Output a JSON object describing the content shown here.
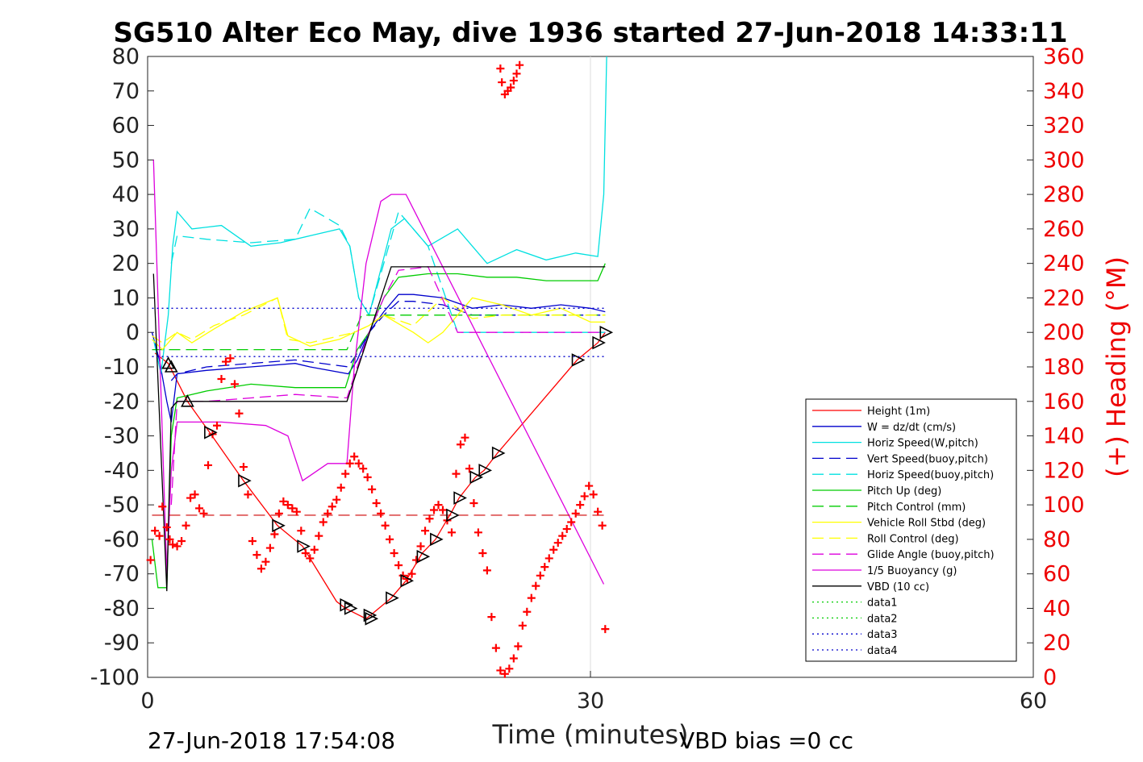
{
  "chart_data": {
    "type": "line",
    "title": "SG510 Alter Eco May, dive 1936 started 27-Jun-2018 14:33:11",
    "xlabel": "Time (minutes)",
    "ylabel_right": "(+) Heading (°M)",
    "xlim": [
      0,
      60
    ],
    "ylim_left": [
      -100,
      80
    ],
    "ylim_right": [
      0,
      360
    ],
    "xticks": [
      "0",
      "30",
      "60"
    ],
    "yticks_left": [
      "80",
      "70",
      "60",
      "50",
      "40",
      "30",
      "20",
      "10",
      "0",
      "-10",
      "-20",
      "-30",
      "-40",
      "-50",
      "-60",
      "-70",
      "-80",
      "-90",
      "-100"
    ],
    "yticks_right": [
      "360",
      "340",
      "320",
      "300",
      "280",
      "260",
      "240",
      "220",
      "200",
      "180",
      "160",
      "140",
      "120",
      "100",
      "80",
      "60",
      "40",
      "20",
      "0"
    ],
    "grid": false,
    "legend_position": "lower-right",
    "footer_left": "27-Jun-2018 17:54:08",
    "footer_right": "VBD bias =0 cc",
    "series": [
      {
        "name": "Height (1m)",
        "color": "#ff0000",
        "style": "solid",
        "x": [
          0.5,
          1.4,
          2.7,
          4.2,
          6.5,
          8.8,
          10.5,
          12.8,
          13.4,
          14.8,
          15.1,
          16.5,
          17.5,
          18.6,
          19.5,
          20.6,
          21.1,
          22.2,
          22.8,
          23.7,
          29.1,
          30.5,
          31.0
        ],
        "y": [
          -6,
          -9,
          -20,
          -29,
          -43,
          -56,
          -62,
          -78,
          -80,
          -83,
          -82,
          -77,
          -72,
          -64,
          -60,
          -52,
          -48,
          -42,
          -40,
          -35,
          -8,
          -3,
          0
        ]
      },
      {
        "name": "W = dz/dt (cm/s)",
        "color": "#0000cc",
        "style": "solid",
        "x": [
          0.3,
          0.8,
          1.3,
          1.6,
          2.0,
          4,
          7,
          10,
          11,
          13.6,
          14.2,
          15,
          16,
          17,
          18,
          20,
          22,
          24,
          26,
          28,
          30,
          31
        ],
        "y": [
          0,
          -8,
          -20,
          -26,
          -12,
          -11,
          -10,
          -9,
          -10,
          -12,
          -8,
          0,
          6,
          11,
          11,
          10,
          7,
          8,
          7,
          8,
          7,
          6
        ]
      },
      {
        "name": "Horiz Speed(W,pitch)",
        "color": "#00e0e0",
        "style": "solid",
        "x": [
          0.4,
          0.9,
          1.4,
          1.7,
          2.0,
          3,
          5,
          7,
          9,
          11,
          13,
          13.7,
          14.3,
          15,
          15.6,
          16.5,
          17.4,
          19,
          21,
          23,
          25,
          27,
          29,
          30.5,
          30.9,
          31.1
        ],
        "y": [
          -2,
          -12,
          5,
          25,
          35,
          30,
          31,
          25,
          26,
          28,
          30,
          25,
          10,
          5,
          15,
          30,
          33,
          25,
          30,
          20,
          24,
          21,
          23,
          22,
          40,
          80
        ]
      },
      {
        "name": "Vert Speed(buoy,pitch)",
        "color": "#0000cc",
        "style": "dashed",
        "x": [
          1.6,
          2,
          4,
          7,
          10,
          13.6,
          14.2,
          15,
          16,
          17,
          18,
          20,
          22,
          24,
          26,
          28,
          30,
          31
        ],
        "y": [
          -14,
          -12,
          -10,
          -9,
          -8,
          -10,
          -6,
          0,
          5,
          9,
          9,
          8,
          5,
          5,
          5,
          5,
          5,
          5
        ]
      },
      {
        "name": "Horiz Speed(buoy,pitch)",
        "color": "#00e0e0",
        "style": "dashed",
        "x": [
          1.6,
          2,
          4,
          7,
          10,
          11,
          13,
          13.7,
          14.3,
          15,
          16,
          17,
          19,
          21,
          23,
          25,
          27,
          29,
          31
        ],
        "y": [
          20,
          28,
          27,
          26,
          27,
          36,
          31,
          25,
          10,
          5,
          20,
          35,
          25,
          0,
          0,
          0,
          0,
          0,
          0
        ]
      },
      {
        "name": "Pitch Up (deg)",
        "color": "#00cc00",
        "style": "solid",
        "x": [
          0.3,
          0.7,
          1.3,
          1.6,
          2,
          4,
          7,
          10,
          13.4,
          14.2,
          15,
          16,
          17,
          19,
          21,
          23,
          25,
          27,
          29,
          30.5,
          31
        ],
        "y": [
          -60,
          -74,
          -74,
          -30,
          -19,
          -17,
          -15,
          -16,
          -16,
          -5,
          0,
          10,
          16,
          17,
          17,
          16,
          16,
          15,
          15,
          15,
          20
        ]
      },
      {
        "name": "Pitch Control (mm)",
        "color": "#00cc00",
        "style": "dashed",
        "x": [
          0.3,
          1.5,
          2,
          13.5,
          14.5,
          31
        ],
        "y": [
          -5,
          -5,
          -5,
          -5,
          5,
          5
        ]
      },
      {
        "name": "Vehicle Roll Stbd (deg)",
        "color": "#ffff00",
        "style": "solid",
        "x": [
          0.3,
          1,
          2,
          3,
          4.5,
          6.5,
          8.8,
          9.5,
          11,
          13,
          14,
          15,
          16,
          18,
          19,
          20,
          22,
          24,
          26,
          28,
          30,
          31
        ],
        "y": [
          -2,
          -5,
          0,
          -3,
          1,
          6,
          10,
          -1,
          -4,
          -2,
          0,
          2,
          5,
          0,
          -3,
          0,
          10,
          8,
          5,
          7,
          3,
          3
        ]
      },
      {
        "name": "Roll Control (deg)",
        "color": "#ffff00",
        "style": "dashed",
        "x": [
          0.3,
          1,
          2,
          3,
          4.5,
          6.5,
          8.8,
          9.5,
          11,
          13,
          14,
          15,
          16,
          18,
          20,
          22,
          24,
          26,
          28,
          30,
          31
        ],
        "y": [
          -1,
          -3,
          0,
          -2,
          2,
          5,
          10,
          -2,
          -3,
          -1,
          0,
          2,
          5,
          2,
          10,
          4,
          5,
          5,
          5,
          5,
          5
        ]
      },
      {
        "name": "Glide Angle (buoy,pitch)",
        "color": "#dd00dd",
        "style": "dashed",
        "x": [
          1.6,
          2,
          4,
          7,
          10,
          13.5,
          14.2,
          15,
          16,
          17,
          19,
          21,
          23,
          25,
          27,
          29,
          31
        ],
        "y": [
          -50,
          -20,
          -20,
          -19,
          -18,
          -19,
          -10,
          0,
          10,
          18,
          19,
          0,
          0,
          0,
          0,
          0,
          0
        ]
      },
      {
        "name": "1/5 Buoyancy (g)",
        "color": "#dd00dd",
        "style": "solid",
        "x": [
          0.4,
          1.3,
          1.6,
          2.0,
          5,
          8,
          9.5,
          10.5,
          12.2,
          13.5,
          14,
          14.8,
          15.8,
          16.5,
          17.5,
          30.9
        ],
        "y": [
          50,
          -70,
          -40,
          -26,
          -26,
          -27,
          -30,
          -43,
          -38,
          -38,
          -10,
          20,
          38,
          40,
          40,
          -73
        ]
      },
      {
        "name": "VBD (10 cc)",
        "color": "#000000",
        "style": "solid",
        "x": [
          0.4,
          1.3,
          1.6,
          2.0,
          13.5,
          16.5,
          31
        ],
        "y": [
          17,
          -75,
          -22,
          -20,
          -20,
          19,
          19
        ]
      },
      {
        "name": "data1",
        "color": "#00cc00",
        "style": "dotted",
        "x": [],
        "y": []
      },
      {
        "name": "data2",
        "color": "#00cc00",
        "style": "dotted",
        "x": [],
        "y": []
      },
      {
        "name": "data3",
        "color": "#0000cc",
        "style": "dotted",
        "x": [
          0.3,
          31
        ],
        "y": [
          7,
          7
        ]
      },
      {
        "name": "data4",
        "color": "#0000cc",
        "style": "dotted",
        "x": [
          0.3,
          31
        ],
        "y": [
          -7,
          -7
        ]
      }
    ],
    "reference_lines": [
      {
        "color": "#cc0000",
        "style": "dashed",
        "axis": "left",
        "y": -53,
        "x": [
          0.3,
          31
        ]
      }
    ],
    "vertical_line": {
      "x": 30,
      "color": "#dddddd"
    },
    "heading": {
      "color": "#ff0000",
      "marker": "+",
      "axis": "right",
      "x": [
        0.2,
        0.5,
        0.8,
        1.0,
        1.3,
        1.5,
        1.7,
        2.0,
        2.3,
        2.6,
        2.9,
        3.2,
        3.5,
        3.8,
        4.1,
        4.4,
        4.7,
        5.0,
        5.3,
        5.6,
        5.9,
        6.2,
        6.5,
        6.8,
        7.1,
        7.4,
        7.7,
        8.0,
        8.3,
        8.6,
        8.9,
        9.2,
        9.5,
        9.8,
        10.1,
        10.4,
        10.7,
        11.0,
        11.3,
        11.6,
        11.9,
        12.2,
        12.5,
        12.8,
        13.1,
        13.4,
        13.7,
        14.0,
        14.3,
        14.6,
        14.9,
        15.2,
        15.5,
        15.8,
        16.1,
        16.4,
        16.7,
        17.0,
        17.3,
        17.6,
        17.9,
        18.2,
        18.5,
        18.8,
        19.1,
        19.4,
        19.7,
        20.0,
        20.3,
        20.6,
        20.9,
        21.2,
        21.5,
        21.8,
        22.1,
        22.4,
        22.7,
        23.0,
        23.3,
        23.6,
        23.9,
        24.2,
        24.5,
        24.8,
        25.1,
        25.4,
        25.7,
        26.0,
        26.3,
        26.6,
        26.9,
        27.2,
        27.5,
        27.8,
        28.1,
        28.4,
        28.7,
        29.0,
        29.3,
        29.6,
        29.9,
        30.2,
        30.5,
        30.8,
        31.0
      ],
      "y": [
        68,
        85,
        82,
        99,
        87,
        80,
        77,
        76,
        79,
        88,
        104,
        106,
        98,
        95,
        123,
        141,
        146,
        173,
        183,
        185,
        170,
        153,
        122,
        106,
        79,
        71,
        63,
        67,
        75,
        83,
        95,
        102,
        100,
        98,
        96,
        85,
        72,
        69,
        74,
        82,
        90,
        95,
        99,
        103,
        110,
        118,
        124,
        128,
        124,
        121,
        116,
        109,
        101,
        95,
        88,
        80,
        72,
        65,
        59,
        57,
        60,
        68,
        76,
        85,
        92,
        97,
        100,
        97,
        91,
        84,
        118,
        135,
        139,
        121,
        101,
        84,
        72,
        62,
        35,
        17,
        4,
        2,
        5,
        11,
        18,
        30,
        38,
        46,
        53,
        59,
        64,
        69,
        74,
        78,
        82,
        86,
        90,
        95,
        100,
        105,
        111,
        106,
        96,
        88,
        28
      ]
    },
    "heading_wrap": {
      "x": [
        23.9,
        24.0,
        24.2,
        24.4,
        24.6,
        24.8,
        25.0,
        25.2
      ],
      "y": [
        353,
        345,
        338,
        340,
        342,
        346,
        350,
        355
      ]
    },
    "triangles": {
      "color": "#000000",
      "axis": "left",
      "x": [
        1.4,
        1.6,
        2.7,
        4.2,
        6.5,
        8.8,
        10.5,
        13.4,
        13.7,
        15.0,
        15.1,
        16.5,
        17.5,
        18.6,
        19.5,
        20.6,
        21.1,
        22.2,
        22.8,
        23.7,
        29.1,
        30.5,
        31.0
      ],
      "y": [
        -9,
        -10,
        -20,
        -29,
        -43,
        -56,
        -62,
        -79,
        -80,
        -82,
        -83,
        -77,
        -72,
        -65,
        -60,
        -53,
        -48,
        -42,
        -40,
        -35,
        -8,
        -3,
        0
      ]
    }
  }
}
